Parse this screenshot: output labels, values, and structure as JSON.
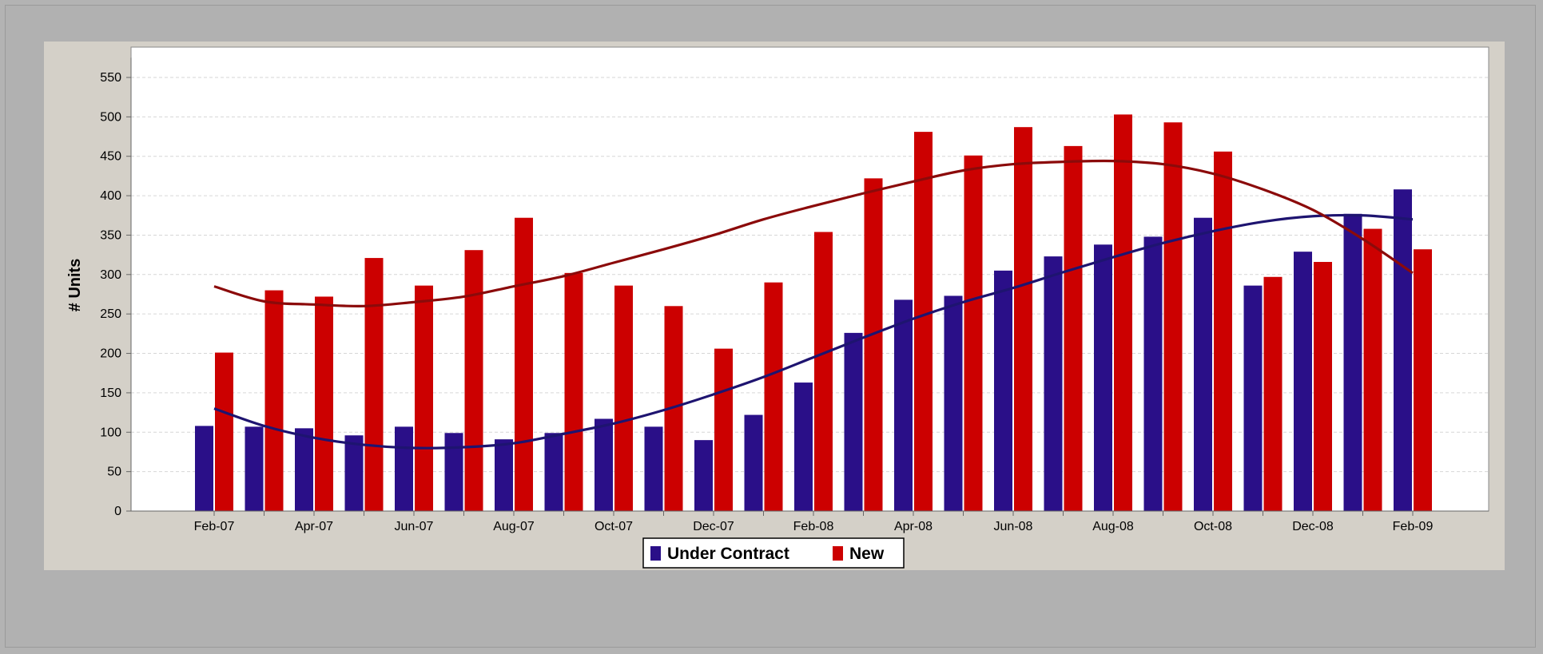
{
  "chart_data": {
    "type": "bar",
    "ylabel": "# Units",
    "ylim": [
      0,
      575
    ],
    "yticks": [
      0,
      50,
      100,
      150,
      200,
      250,
      300,
      350,
      400,
      450,
      500,
      550
    ],
    "grid": true,
    "legend_position": "bottom-center",
    "categories": [
      "Feb-07",
      "Mar-07",
      "Apr-07",
      "May-07",
      "Jun-07",
      "Jul-07",
      "Aug-07",
      "Sep-07",
      "Oct-07",
      "Nov-07",
      "Dec-07",
      "Jan-08",
      "Feb-08",
      "Mar-08",
      "Apr-08",
      "May-08",
      "Jun-08",
      "Jul-08",
      "Aug-08",
      "Sep-08",
      "Oct-08",
      "Nov-08",
      "Dec-08",
      "Jan-09",
      "Feb-09"
    ],
    "xtick_labels": [
      "Feb-07",
      "",
      "Apr-07",
      "",
      "Jun-07",
      "",
      "Aug-07",
      "",
      "Oct-07",
      "",
      "Dec-07",
      "",
      "Feb-08",
      "",
      "Apr-08",
      "",
      "Jun-08",
      "",
      "Aug-08",
      "",
      "Oct-08",
      "",
      "Dec-08",
      "",
      "Feb-09"
    ],
    "series": [
      {
        "name": "Under Contract",
        "color": "#2a0f88",
        "values": [
          108,
          107,
          105,
          96,
          107,
          99,
          91,
          99,
          117,
          107,
          90,
          122,
          163,
          226,
          268,
          273,
          305,
          323,
          338,
          348,
          372,
          286,
          329,
          377,
          408
        ]
      },
      {
        "name": "New",
        "color": "#cc0000",
        "values": [
          201,
          280,
          272,
          321,
          286,
          331,
          372,
          302,
          286,
          260,
          206,
          290,
          354,
          422,
          481,
          451,
          487,
          463,
          503,
          493,
          456,
          297,
          316,
          358,
          332
        ]
      }
    ],
    "trendlines": [
      {
        "series": "Under Contract",
        "color": "#1e1470",
        "values": [
          130,
          108,
          93,
          84,
          80,
          81,
          86,
          98,
          111,
          128,
          148,
          170,
          195,
          220,
          244,
          265,
          283,
          303,
          322,
          340,
          355,
          367,
          374,
          375,
          370
        ]
      },
      {
        "series": "New",
        "color": "#8b0a0a",
        "values": [
          285,
          266,
          262,
          260,
          265,
          272,
          285,
          298,
          315,
          332,
          350,
          370,
          387,
          403,
          418,
          432,
          440,
          443,
          444,
          440,
          428,
          408,
          382,
          345,
          302
        ]
      }
    ]
  }
}
